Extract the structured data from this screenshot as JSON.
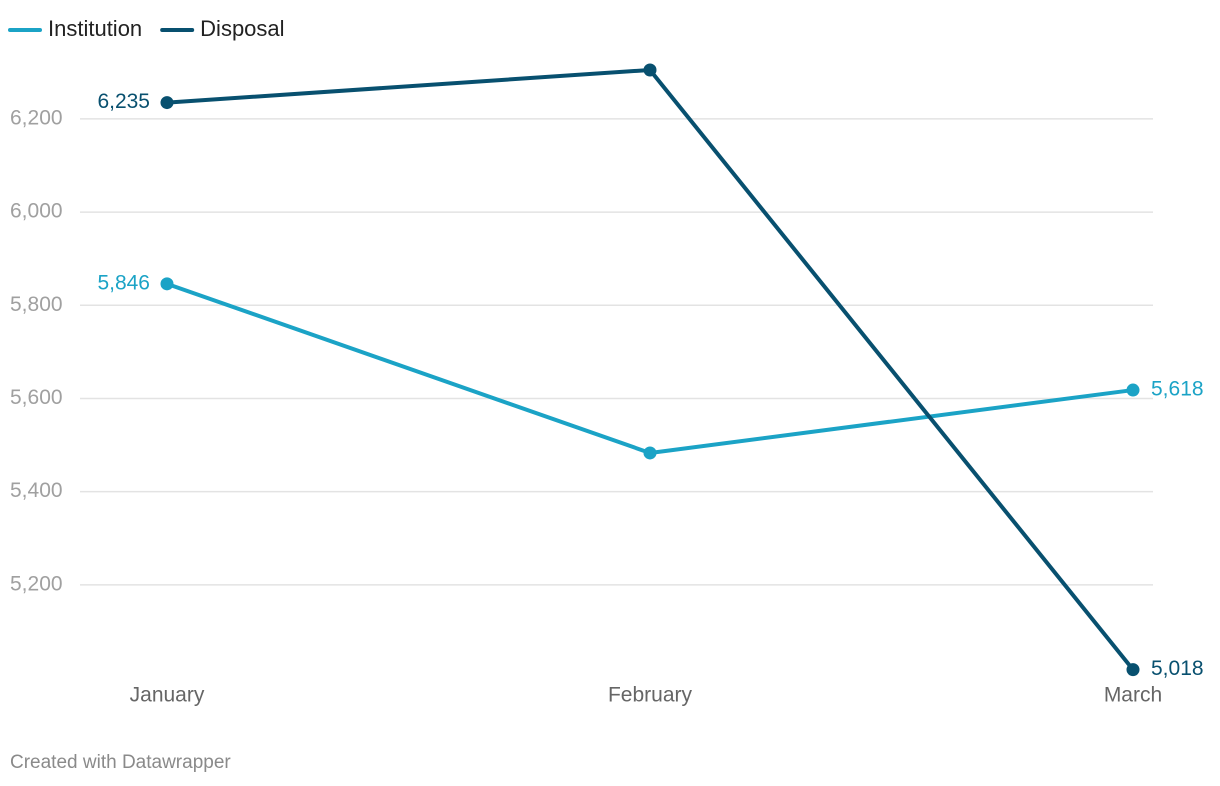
{
  "chart_data": {
    "type": "line",
    "categories": [
      "January",
      "February",
      "March"
    ],
    "series": [
      {
        "name": "Institution",
        "color": "#1ba3c6",
        "values": [
          5846,
          5483,
          5618
        ],
        "value_labels": [
          "5,846",
          null,
          "5,618"
        ]
      },
      {
        "name": "Disposal",
        "color": "#08506f",
        "values": [
          6235,
          6305,
          5018
        ],
        "value_labels": [
          "6,235",
          null,
          "5,018"
        ]
      }
    ],
    "ylim": [
      5000,
      6350
    ],
    "yticks": [
      {
        "value": 5200,
        "label": "5,200"
      },
      {
        "value": 5400,
        "label": "5,400"
      },
      {
        "value": 5600,
        "label": "5,600"
      },
      {
        "value": 5800,
        "label": "5,800"
      },
      {
        "value": 6000,
        "label": "6,000"
      },
      {
        "value": 6200,
        "label": "6,200"
      }
    ],
    "grid": true,
    "legend": "top-left",
    "credit": "Created with Datawrapper"
  }
}
